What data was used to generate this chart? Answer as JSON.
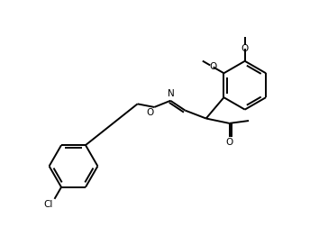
{
  "bg_color": "#ffffff",
  "line_color": "#000000",
  "line_width": 1.4,
  "font_size": 7.5,
  "fig_width": 3.64,
  "fig_height": 2.72,
  "dpi": 100,
  "xlim": [
    0,
    10
  ],
  "ylim": [
    0,
    7.5
  ]
}
